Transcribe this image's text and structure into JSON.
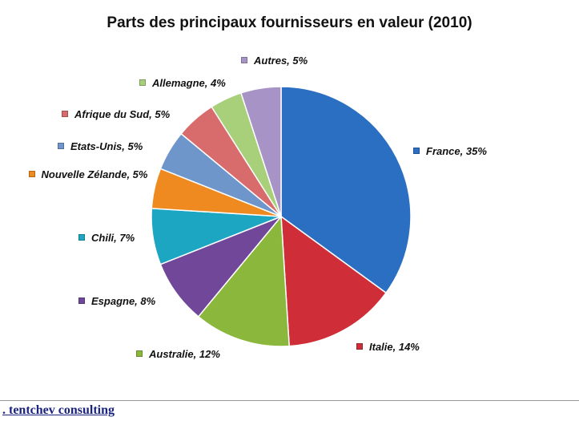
{
  "chart_data": {
    "type": "pie",
    "title": "Parts des principaux fournisseurs en valeur (2010)",
    "values": [
      35,
      14,
      12,
      8,
      7,
      5,
      5,
      5,
      4,
      5
    ],
    "value_labels": [
      "France, 35%",
      "Italie, 14%",
      "Australie, 12%",
      "Espagne, 8%",
      "Chili, 7%",
      "Nouvelle Zélande, 5%",
      "Etats-Unis, 5%",
      "Afrique du Sud, 5%",
      "Allemagne, 4%",
      "Autres, 5%"
    ],
    "colors": [
      "#2b6fc2",
      "#cf2e38",
      "#8bb83c",
      "#71479a",
      "#1ca6c2",
      "#ee8a1f",
      "#6e96cb",
      "#d86b6c",
      "#a8cf7a",
      "#a893c6"
    ]
  },
  "footer": {
    "link": ". tentchev consulting"
  }
}
